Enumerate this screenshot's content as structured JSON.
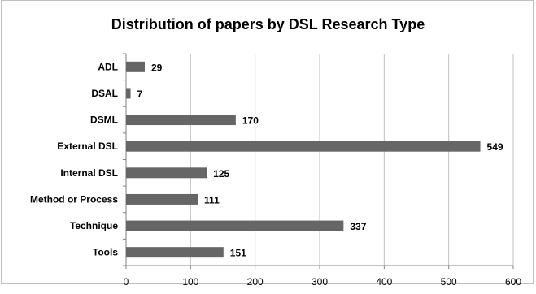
{
  "chart_data": {
    "type": "bar",
    "orientation": "horizontal",
    "title": "Distribution of papers by DSL Research Type",
    "categories": [
      "ADL",
      "DSAL",
      "DSML",
      "External DSL",
      "Internal DSL",
      "Method or Process",
      "Technique",
      "Tools"
    ],
    "values": [
      29,
      7,
      170,
      549,
      125,
      111,
      337,
      151
    ],
    "xlim": [
      0,
      600
    ],
    "xticks": [
      0,
      100,
      200,
      300,
      400,
      500,
      600
    ],
    "xlabel": "",
    "ylabel": "",
    "grid": "vertical",
    "legend": "none",
    "bar_color": "#666666",
    "gridline_color": "#c0c0c0",
    "axis_color": "#808080",
    "data_labels": true
  }
}
